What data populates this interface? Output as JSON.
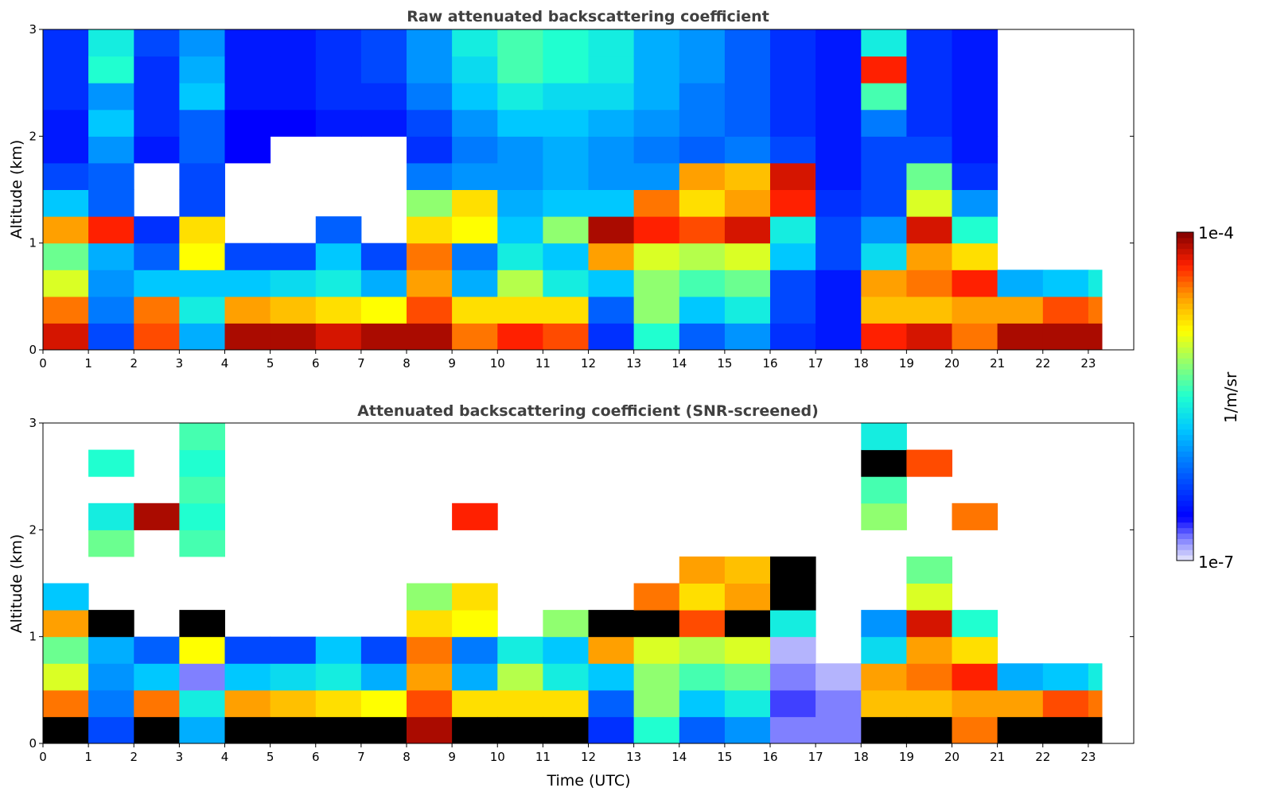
{
  "chart_data": [
    {
      "type": "heatmap",
      "title": "Raw attenuated backscattering coefficient",
      "xlabel": "",
      "ylabel": "Altitude (km)",
      "xlim": [
        0,
        24
      ],
      "ylim": [
        0,
        3
      ],
      "data_end_time": 23.3,
      "xticks": [
        "0",
        "1",
        "2",
        "3",
        "4",
        "5",
        "6",
        "7",
        "8",
        "9",
        "10",
        "11",
        "12",
        "13",
        "14",
        "15",
        "16",
        "17",
        "18",
        "19",
        "20",
        "21",
        "22",
        "23"
      ],
      "yticks": [
        "0",
        "1",
        "2",
        "3"
      ],
      "value_units": "log10(1/m/sr)",
      "over_color": "#800000",
      "time_bins_hours": [
        0,
        1,
        2,
        3,
        4,
        5,
        6,
        7,
        8,
        9,
        10,
        11,
        12,
        13,
        14,
        15,
        16,
        17,
        18,
        19,
        20,
        21,
        22,
        23
      ],
      "altitude_bins_km": [
        0,
        0.25,
        0.5,
        0.75,
        1,
        1.25,
        1.5,
        1.75,
        2,
        2.25,
        2.5,
        2.75
      ],
      "values": [
        [
          -4.2,
          -4.5,
          -5,
          -5.3,
          -4.6,
          -5.8,
          -6.3,
          -6.5,
          -6.5,
          -6.4,
          -6.4,
          -6.4
        ],
        [
          -6.3,
          -6.1,
          -6,
          -5.9,
          -4.3,
          -6.2,
          -6.2,
          -6,
          -5.8,
          -6,
          -5.5,
          -5.6
        ],
        [
          -4.4,
          -4.5,
          -5.8,
          -6.2,
          -6.4,
          null,
          null,
          -6.5,
          -6.4,
          -6.4,
          -6.4,
          -6.3
        ],
        [
          -5.9,
          -5.6,
          -5.8,
          -4.9,
          -4.8,
          -6.3,
          -6.3,
          -6.2,
          -6.2,
          -5.8,
          -5.9,
          -6
        ],
        [
          -4.1,
          -4.6,
          -5.8,
          -6.3,
          null,
          null,
          null,
          -6.6,
          -6.6,
          -6.5,
          -6.5,
          -6.5
        ],
        [
          -4.1,
          -4.7,
          -5.7,
          -6.3,
          null,
          null,
          null,
          null,
          -6.6,
          -6.5,
          -6.5,
          -6.5
        ],
        [
          -4.2,
          -4.8,
          -5.6,
          -5.8,
          -6.2,
          null,
          null,
          null,
          -6.5,
          -6.4,
          -6.4,
          -6.4
        ],
        [
          -4.1,
          -4.9,
          -5.9,
          -6.3,
          null,
          null,
          null,
          null,
          -6.5,
          -6.4,
          -6.3,
          -6.3
        ],
        [
          -4.1,
          -4.4,
          -4.6,
          -4.5,
          -4.8,
          -5.2,
          -6.1,
          -6.4,
          -6.3,
          -6.1,
          -6,
          -6
        ],
        [
          -4.5,
          -4.8,
          -5.9,
          -6.1,
          -4.9,
          -4.8,
          -6,
          -6.1,
          -6,
          -5.8,
          -5.7,
          -5.6
        ],
        [
          -4.3,
          -4.8,
          -5.1,
          -5.6,
          -5.8,
          -5.9,
          -6,
          -6,
          -5.8,
          -5.6,
          -5.4,
          -5.4
        ],
        [
          -4.4,
          -4.8,
          -5.6,
          -5.8,
          -5.2,
          -5.8,
          -5.9,
          -5.9,
          -5.8,
          -5.7,
          -5.5,
          -5.5
        ],
        [
          -6.4,
          -6.2,
          -5.8,
          -4.6,
          -4.1,
          -5.8,
          -6,
          -6,
          -5.9,
          -5.7,
          -5.6,
          -5.6
        ],
        [
          -5.5,
          -5.2,
          -5.2,
          -5,
          -4.3,
          -4.5,
          -6,
          -6.1,
          -6,
          -5.9,
          -5.9,
          -5.9
        ],
        [
          -6.2,
          -5.8,
          -5.4,
          -5.1,
          -4.4,
          -4.8,
          -4.6,
          -6.2,
          -6.1,
          -6.1,
          -6,
          -6
        ],
        [
          -6,
          -5.6,
          -5.3,
          -5,
          -4.2,
          -4.6,
          -4.7,
          -6.1,
          -6.2,
          -6.2,
          -6.2,
          -6.2
        ],
        [
          -6.4,
          -6.3,
          -6.3,
          -5.8,
          -5.6,
          -4.3,
          -4.2,
          -6.3,
          -6.4,
          -6.4,
          -6.4,
          -6.4
        ],
        [
          -6.5,
          -6.5,
          -6.5,
          -6.3,
          -6.3,
          -6.4,
          -6.5,
          -6.5,
          -6.5,
          -6.5,
          -6.5,
          -6.5
        ],
        [
          -4.3,
          -4.7,
          -4.6,
          -5.7,
          -6,
          -6.3,
          -6.3,
          -6.3,
          -6.1,
          -5.4,
          -4.3,
          -5.6
        ],
        [
          -4.2,
          -4.7,
          -4.5,
          -4.6,
          -4.2,
          -5,
          -5.3,
          -6.3,
          -6.4,
          -6.4,
          -6.4,
          -6.4
        ],
        [
          -4.5,
          -4.6,
          -4.3,
          -4.8,
          -5.5,
          -6,
          -6.4,
          -6.5,
          -6.5,
          -6.5,
          -6.5,
          -6.5
        ],
        [
          -4.1,
          -4.6,
          -5.9,
          null,
          null,
          null,
          null,
          null,
          null,
          null,
          null,
          null
        ],
        [
          -4.1,
          -4.4,
          -5.8,
          null,
          null,
          null,
          null,
          null,
          null,
          null,
          null,
          null
        ],
        [
          -4.1,
          -4.5,
          -5.6,
          null,
          null,
          null,
          null,
          null,
          null,
          null,
          null,
          null
        ]
      ]
    },
    {
      "type": "heatmap",
      "title": "Attenuated backscattering coefficient (SNR-screened)",
      "xlabel": "Time (UTC)",
      "ylabel": "Altitude (km)",
      "xlim": [
        0,
        24
      ],
      "ylim": [
        0,
        3
      ],
      "data_end_time": 23.3,
      "xticks": [
        "0",
        "1",
        "2",
        "3",
        "4",
        "5",
        "6",
        "7",
        "8",
        "9",
        "10",
        "11",
        "12",
        "13",
        "14",
        "15",
        "16",
        "17",
        "18",
        "19",
        "20",
        "21",
        "22",
        "23"
      ],
      "yticks": [
        "0",
        "1",
        "2",
        "3"
      ],
      "value_units": "log10(1/m/sr)",
      "over_color": "#000000",
      "time_bins_hours": [
        0,
        1,
        2,
        3,
        4,
        5,
        6,
        7,
        8,
        9,
        10,
        11,
        12,
        13,
        14,
        15,
        16,
        17,
        18,
        19,
        20,
        21,
        22,
        23
      ],
      "altitude_bins_km": [
        0,
        0.25,
        0.5,
        0.75,
        1,
        1.25,
        1.5,
        1.75,
        2,
        2.25,
        2.5,
        2.75
      ],
      "values": [
        [
          -3.9,
          -4.5,
          -5,
          -5.3,
          -4.6,
          -5.8,
          null,
          null,
          null,
          null,
          null,
          null
        ],
        [
          -6.3,
          -6.1,
          -6,
          -5.9,
          -3.9,
          null,
          null,
          -5.3,
          -5.6,
          null,
          -5.5,
          null
        ],
        [
          -3.9,
          -4.5,
          -5.8,
          -6.2,
          null,
          null,
          null,
          null,
          -4.1,
          null,
          null,
          null
        ],
        [
          -5.9,
          -5.6,
          -6.8,
          -4.9,
          -3.9,
          null,
          null,
          -5.4,
          -5.5,
          -5.4,
          -5.5,
          -5.4
        ],
        [
          -3.9,
          -4.6,
          -5.8,
          -6.3,
          null,
          null,
          null,
          null,
          null,
          null,
          null,
          null
        ],
        [
          -3.9,
          -4.7,
          -5.7,
          -6.3,
          null,
          null,
          null,
          null,
          null,
          null,
          null,
          null
        ],
        [
          -3.9,
          -4.8,
          -5.6,
          -5.8,
          null,
          null,
          null,
          null,
          null,
          null,
          null,
          null
        ],
        [
          -3.9,
          -4.9,
          -5.9,
          -6.3,
          null,
          null,
          null,
          null,
          null,
          null,
          null,
          null
        ],
        [
          -4.1,
          -4.4,
          -4.6,
          -4.5,
          -4.8,
          -5.2,
          null,
          null,
          null,
          null,
          null,
          null
        ],
        [
          -3.9,
          -4.8,
          -5.9,
          -6.1,
          -4.9,
          -4.8,
          null,
          null,
          -4.3,
          null,
          null,
          null
        ],
        [
          -3.9,
          -4.8,
          -5.1,
          -5.6,
          null,
          null,
          null,
          null,
          null,
          null,
          null,
          null
        ],
        [
          -3.9,
          -4.8,
          -5.6,
          -5.8,
          -5.2,
          null,
          null,
          null,
          null,
          null,
          null,
          null
        ],
        [
          -6.4,
          -6.2,
          -5.8,
          -4.6,
          -3.9,
          null,
          null,
          null,
          null,
          null,
          null,
          null
        ],
        [
          -5.5,
          -5.2,
          -5.2,
          -5,
          -3.9,
          -4.5,
          null,
          null,
          null,
          null,
          null,
          null
        ],
        [
          -6.2,
          -5.8,
          -5.4,
          -5.1,
          -4.4,
          -4.8,
          -4.6,
          null,
          null,
          null,
          null,
          null
        ],
        [
          -6,
          -5.6,
          -5.3,
          -5,
          -3.9,
          -4.6,
          -4.7,
          null,
          null,
          null,
          null,
          null
        ],
        [
          -6.8,
          -6.7,
          -6.8,
          -6.9,
          -5.6,
          -3.9,
          -3.9,
          null,
          null,
          null,
          null,
          null
        ],
        [
          -6.8,
          -6.8,
          -6.9,
          null,
          null,
          null,
          null,
          null,
          null,
          null,
          null,
          null
        ],
        [
          -3.9,
          -4.7,
          -4.6,
          -5.7,
          -6,
          null,
          null,
          null,
          -5.2,
          -5.4,
          -3.9,
          -5.6
        ],
        [
          -3.9,
          -4.7,
          -4.5,
          -4.6,
          -4.2,
          -5,
          -5.3,
          null,
          null,
          null,
          -4.4,
          null
        ],
        [
          -4.5,
          -4.6,
          -4.3,
          -4.8,
          -5.5,
          null,
          null,
          null,
          -4.5,
          null,
          null,
          null
        ],
        [
          -3.9,
          -4.6,
          -5.9,
          null,
          null,
          null,
          null,
          null,
          null,
          null,
          null,
          null
        ],
        [
          -3.9,
          -4.4,
          -5.8,
          null,
          null,
          null,
          null,
          null,
          null,
          null,
          null,
          null
        ],
        [
          -3.9,
          -4.5,
          -5.6,
          null,
          null,
          null,
          null,
          null,
          null,
          null,
          null,
          null
        ]
      ]
    }
  ],
  "colorbar": {
    "label": "1/m/sr",
    "max_label": "1e-4",
    "min_label": "1e-7",
    "range_log10": [
      -7,
      -4
    ]
  }
}
